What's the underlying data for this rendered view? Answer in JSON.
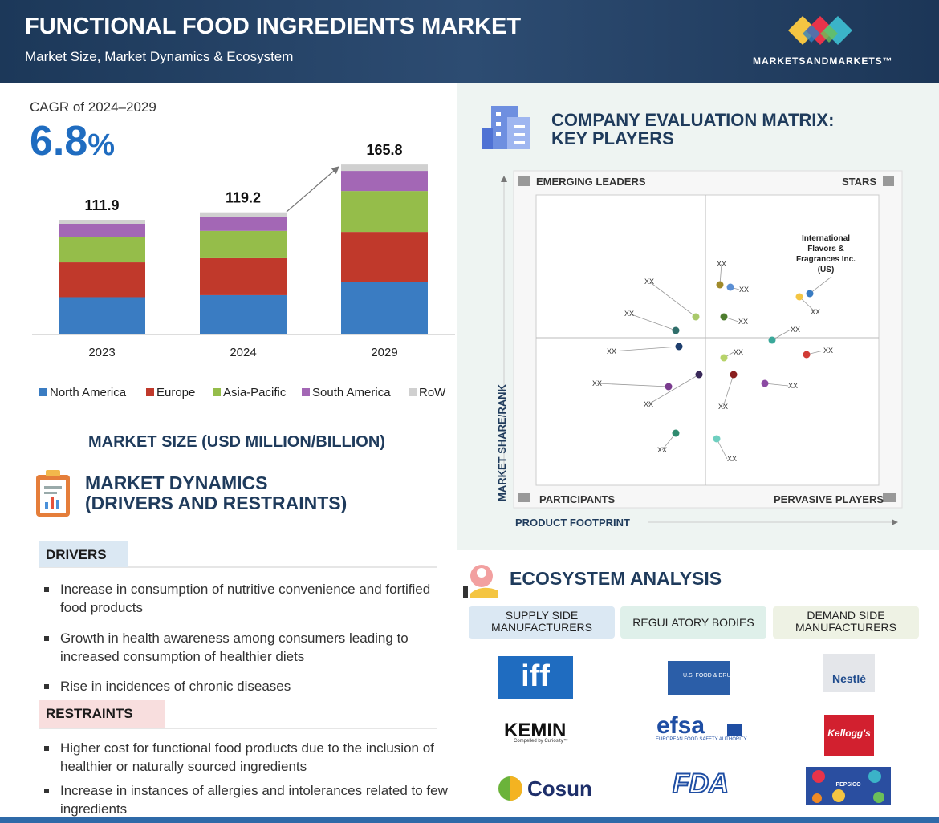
{
  "header": {
    "title": "FUNCTIONAL FOOD INGREDIENTS MARKET",
    "subtitle": "Market Size, Market Dynamics & Ecosystem",
    "brand": "MARKETSANDMARKETS™"
  },
  "cagr": {
    "label": "CAGR of 2024–2029",
    "value": "6.8",
    "unit": "%"
  },
  "chart_data": {
    "type": "bar",
    "stacked": true,
    "title": "MARKET SIZE (USD MILLION/BILLION)",
    "categories": [
      "2023",
      "2024",
      "2029"
    ],
    "totals": [
      111.9,
      119.2,
      165.8
    ],
    "ylim": [
      0,
      180
    ],
    "series": [
      {
        "name": "North America",
        "color": "#3a7cc2",
        "values": [
          36.4,
          38.4,
          51.6
        ]
      },
      {
        "name": "Europe",
        "color": "#c0392b",
        "values": [
          34,
          36,
          48.5
        ]
      },
      {
        "name": "Asia-Pacific",
        "color": "#95bd4a",
        "values": [
          25,
          26.7,
          39.9
        ]
      },
      {
        "name": "South America",
        "color": "#a367b5",
        "values": [
          12.6,
          13.3,
          19.6
        ]
      },
      {
        "name": "RoW",
        "color": "#d0d0d0",
        "values": [
          3.9,
          4.8,
          6.2
        ]
      }
    ]
  },
  "matrix": {
    "title": [
      "COMPANY EVALUATION MATRIX:",
      "KEY PLAYERS"
    ],
    "quadrants": {
      "top_left": "EMERGING LEADERS",
      "top_right": "STARS",
      "bottom_left": "PARTICIPANTS",
      "bottom_right": "PERVASIVE PLAYERS"
    },
    "y_axis_label": "MARKET SHARE/RANK",
    "x_axis_label": "PRODUCT FOOTPRINT",
    "highlighted": [
      "International",
      "Flavors &",
      "Fragrances Inc.",
      "(US)"
    ],
    "labels": [
      "XX",
      "XX",
      "XX",
      "XX",
      "XX",
      "XX",
      "XX",
      "XX",
      "XX",
      "XX",
      "XX",
      "XX",
      "XX",
      "XX",
      "XX",
      "XX"
    ]
  },
  "dynamics": {
    "title": [
      "MARKET DYNAMICS",
      "(DRIVERS AND RESTRAINTS)"
    ],
    "drivers": {
      "heading": "DRIVERS",
      "items": [
        "Increase in consumption of nutritive convenience and fortified food products",
        "Growth in health awareness among consumers leading to increased consumption of healthier diets",
        "Rise in incidences of chronic diseases"
      ]
    },
    "restraints": {
      "heading": "RESTRAINTS",
      "items": [
        "Higher cost for functional food products due to the inclusion of healthier or naturally sourced ingredients",
        "Increase in instances of allergies and intolerances related to few ingredients"
      ]
    }
  },
  "ecosystem": {
    "title": "ECOSYSTEM ANALYSIS",
    "columns": [
      {
        "heading": [
          "SUPPLY SIDE",
          "MANUFACTURERS"
        ],
        "logos": [
          "iff",
          "KEMIN",
          "Compelled by Curiosity™",
          "Cosun"
        ]
      },
      {
        "heading": [
          "REGULATORY BODIES"
        ],
        "logos": [
          "U.S. FOOD & DRUG",
          "efsa",
          "EUROPEAN FOOD SAFETY AUTHORITY",
          "FDA"
        ]
      },
      {
        "heading": [
          "DEMAND SIDE",
          "MANUFACTURERS"
        ],
        "logos": [
          "Nestlé",
          "Kellogg's",
          "PEPSICO"
        ]
      }
    ]
  }
}
